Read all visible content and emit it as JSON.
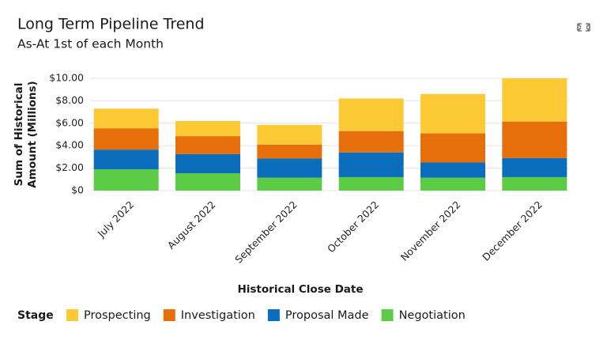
{
  "chart_data": {
    "type": "stacked_bar",
    "title": "Long Term Pipeline Trend",
    "subtitle": "As-At 1st of each Month",
    "x_label": "Historical Close Date",
    "y_label": [
      "Sum of Historical",
      "Amount (Millions)"
    ],
    "legend_title": "Stage",
    "categories": [
      "July 2022",
      "August 2022",
      "September 2022",
      "October 2022",
      "November 2022",
      "December 2022"
    ],
    "series": [
      {
        "name": "Negotiation",
        "color": "#5ccb46",
        "values": [
          1.9,
          1.55,
          1.15,
          1.2,
          1.15,
          1.2
        ]
      },
      {
        "name": "Proposal Made",
        "color": "#0b6ebd",
        "values": [
          1.75,
          1.7,
          1.7,
          2.2,
          1.35,
          1.7
        ]
      },
      {
        "name": "Investigation",
        "color": "#e66f0c",
        "values": [
          1.9,
          1.6,
          1.25,
          1.9,
          2.6,
          3.25
        ]
      },
      {
        "name": "Prospecting",
        "color": "#fdca35",
        "values": [
          1.75,
          1.35,
          1.75,
          2.9,
          3.5,
          3.85
        ]
      }
    ],
    "legend_order": [
      3,
      2,
      1,
      0
    ],
    "ylim": [
      0,
      10
    ],
    "yticks": [
      {
        "value": 0,
        "label": "$0"
      },
      {
        "value": 2,
        "label": "$2.00"
      },
      {
        "value": 4,
        "label": "$4.00"
      },
      {
        "value": 6,
        "label": "$6.00"
      },
      {
        "value": 8,
        "label": "$8.00"
      },
      {
        "value": 10,
        "label": "$10.00"
      }
    ],
    "grid": true
  }
}
